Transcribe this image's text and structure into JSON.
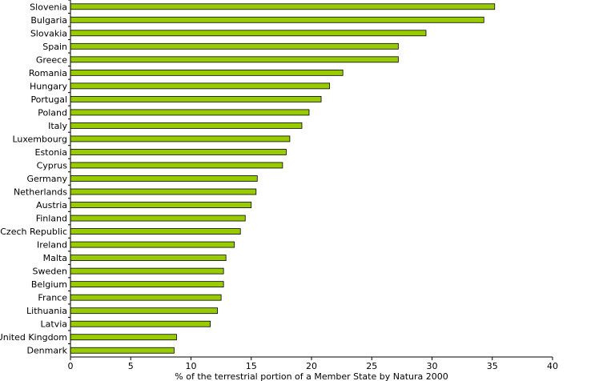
{
  "chart_data": {
    "type": "bar",
    "orientation": "horizontal",
    "categories": [
      "Slovenia",
      "Bulgaria",
      "Slovakia",
      "Spain",
      "Greece",
      "Romania",
      "Hungary",
      "Portugal",
      "Poland",
      "Italy",
      "Luxembourg",
      "Estonia",
      "Cyprus",
      "Germany",
      "Netherlands",
      "Austria",
      "Finland",
      "Czech Republic",
      "Ireland",
      "Malta",
      "Sweden",
      "Belgium",
      "France",
      "Lithuania",
      "Latvia",
      "United Kingdom",
      "Denmark"
    ],
    "values": [
      35.2,
      34.3,
      29.5,
      27.2,
      27.2,
      22.6,
      21.5,
      20.8,
      19.8,
      19.2,
      18.2,
      17.9,
      17.6,
      15.5,
      15.4,
      15.0,
      14.5,
      14.1,
      13.6,
      12.9,
      12.7,
      12.7,
      12.5,
      12.2,
      11.6,
      8.8,
      8.6
    ],
    "xlabel": "% of the terrestrial portion of a Member State by Natura 2000",
    "xlim": [
      0,
      40
    ],
    "xticks": [
      0,
      5,
      10,
      15,
      20,
      25,
      30,
      35,
      40
    ],
    "grid": false,
    "colors": {
      "bar_fill": "#99cc00",
      "bar_stroke": "#000000",
      "axis": "#000000"
    }
  }
}
